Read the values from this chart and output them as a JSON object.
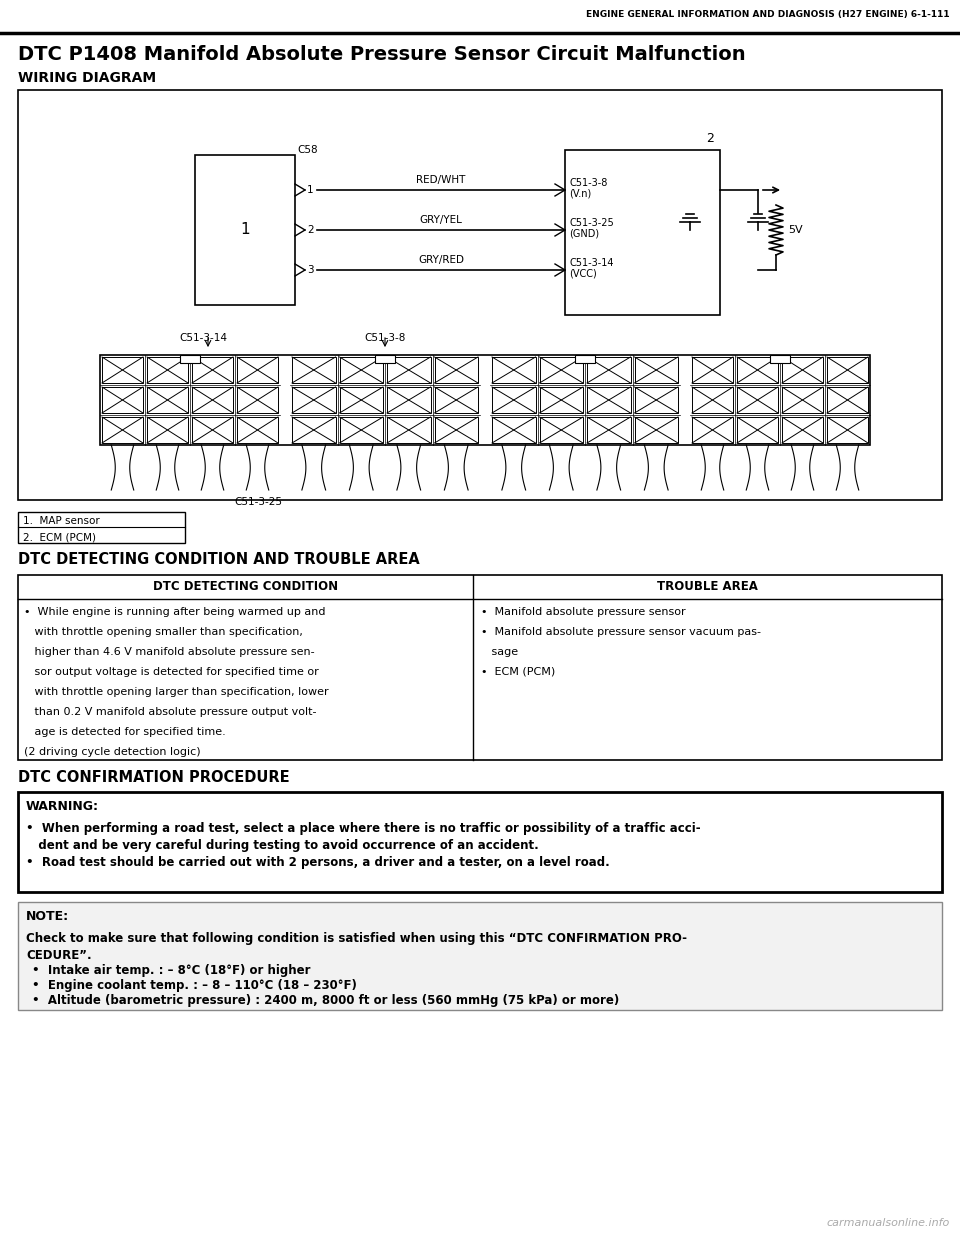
{
  "header_text": "ENGINE GENERAL INFORMATION AND DIAGNOSIS (H27 ENGINE) 6-1-111",
  "title": "DTC P1408 Manifold Absolute Pressure Sensor Circuit Malfunction",
  "wiring_diagram_label": "WIRING DIAGRAM",
  "legend": [
    "1.  MAP sensor",
    "2.  ECM (PCM)"
  ],
  "dtc_section_title": "DTC DETECTING CONDITION AND TROUBLE AREA",
  "table_col1_header": "DTC DETECTING CONDITION",
  "table_col2_header": "TROUBLE AREA",
  "table_col1_lines": [
    "•  While engine is running after being warmed up and",
    "   with throttle opening smaller than specification,",
    "   higher than 4.6 V manifold absolute pressure sen-",
    "   sor output voltage is detected for specified time or",
    "   with throttle opening larger than specification, lower",
    "   than 0.2 V manifold absolute pressure output volt-",
    "   age is detected for specified time.",
    "(2 driving cycle detection logic)"
  ],
  "table_col2_items": [
    "•  Manifold absolute pressure sensor",
    "•  Manifold absolute pressure sensor vacuum pas-",
    "   sage",
    "•  ECM (PCM)"
  ],
  "confirmation_title": "DTC CONFIRMATION PROCEDURE",
  "warning_title": "WARNING:",
  "warning_line1a": "•  When performing a road test, select a place where there is no traffic or possibility of a traffic acci-",
  "warning_line1b": "   dent and be very careful during testing to avoid occurrence of an accident.",
  "warning_line2": "•  Road test should be carried out with 2 persons, a driver and a tester, on a level road.",
  "note_title": "NOTE:",
  "note_body1": "Check to make sure that following condition is satisfied when using this “DTC CONFIRMATION PRO-",
  "note_body2": "CEDURE”.",
  "note_bullet1": "•  Intake air temp. : – 8°C (18°F) or higher",
  "note_bullet2": "•  Engine coolant temp. : – 8 – 110°C (18 – 230°F)",
  "note_bullet3": "•  Altitude (barometric pressure) : 2400 m, 8000 ft or less (560 mmHg (75 kPa) or more)",
  "watermark": "carmanualsonline.info",
  "bg_color": "#ffffff"
}
